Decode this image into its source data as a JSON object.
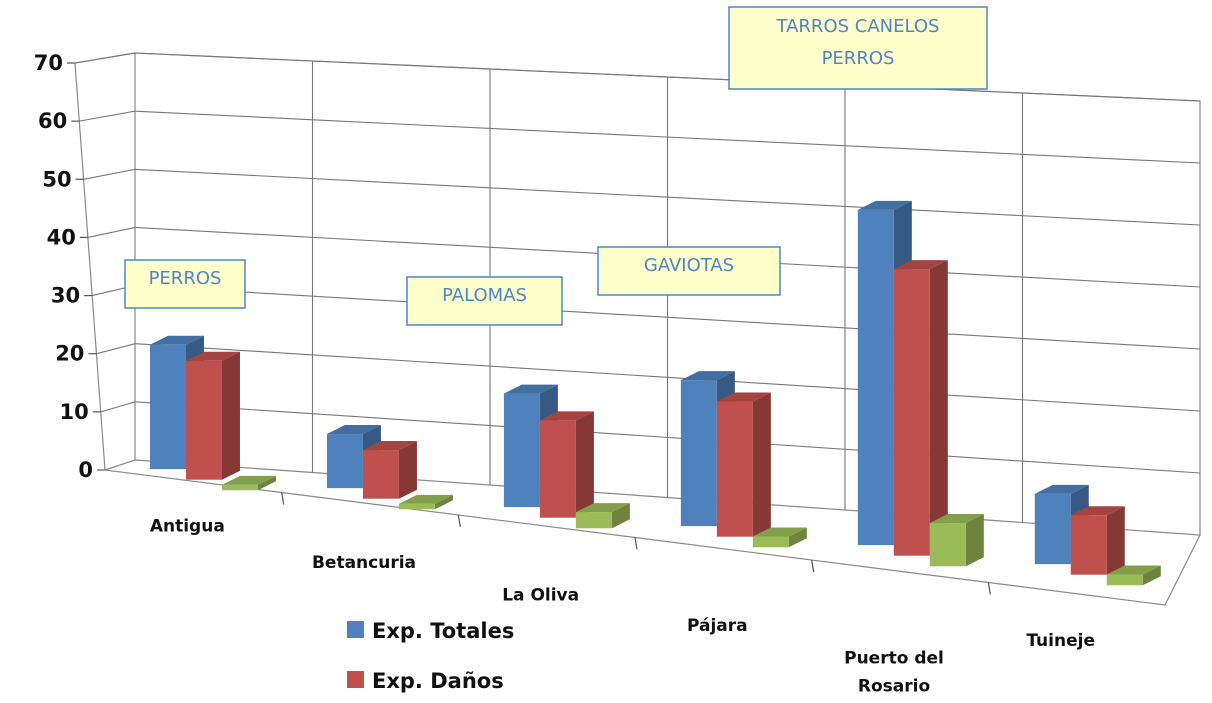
{
  "chart_data": {
    "type": "bar",
    "categories": [
      "Antigua",
      "Betancuria",
      "La Oliva",
      "Pájara",
      "Puerto del Rosario",
      "Tuineje"
    ],
    "series": [
      {
        "name": "Exp. Totales",
        "color": "#4f81bd",
        "values": [
          23,
          10,
          21,
          27,
          62,
          13
        ]
      },
      {
        "name": "Exp. Daños",
        "color": "#c0504d",
        "values": [
          22,
          9,
          18,
          25,
          53,
          11
        ]
      },
      {
        "name": "",
        "color": "#9bbb59",
        "values": [
          1,
          1,
          3,
          2,
          8,
          2
        ]
      }
    ],
    "yticks": [
      "0",
      "10",
      "20",
      "30",
      "40",
      "50",
      "60",
      "70"
    ],
    "ylim": [
      0,
      70
    ],
    "grid": true,
    "annotations": [
      {
        "category": "Antigua",
        "lines": [
          "PERROS"
        ]
      },
      {
        "category": "La Oliva",
        "lines": [
          "PALOMAS"
        ]
      },
      {
        "category": "Pájara",
        "lines": [
          "GAVIOTAS"
        ]
      },
      {
        "category": "Puerto del Rosario",
        "lines": [
          "TARROS CANELOS",
          "PERROS"
        ]
      }
    ],
    "legend": {
      "placement": "bottom-left"
    }
  }
}
